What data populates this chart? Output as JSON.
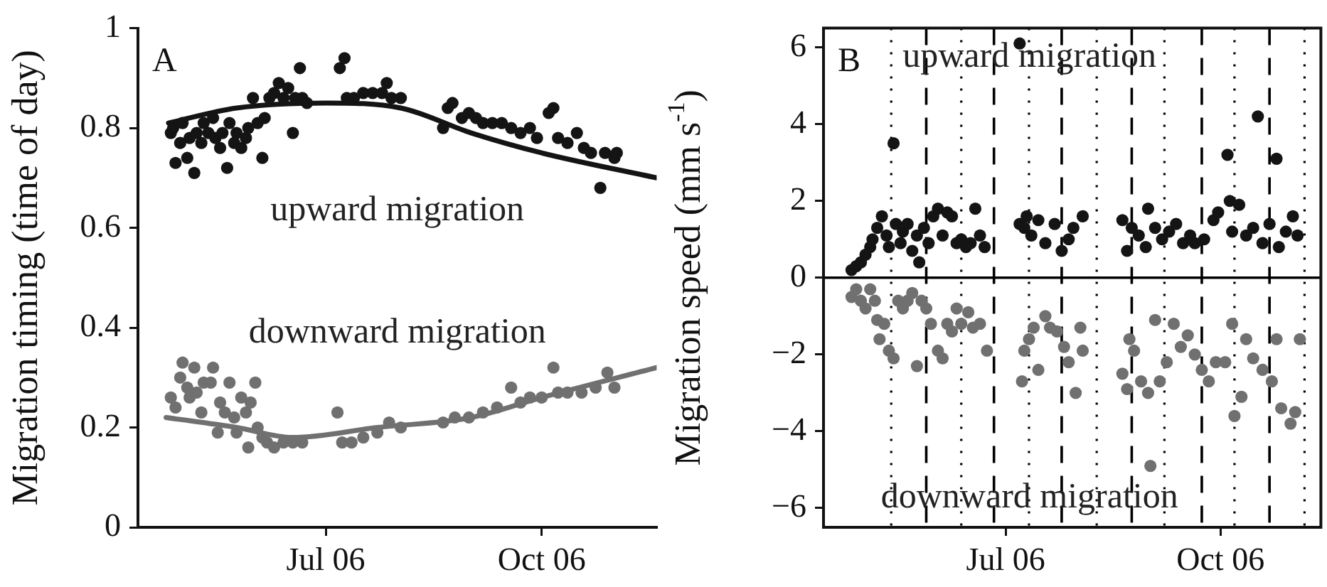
{
  "chart_data": [
    {
      "type": "scatter",
      "ylabel": "Migration timing (time of day)",
      "annotations": [
        "A"
      ],
      "marker": "circle",
      "xlim": [
        "2006-04-12",
        "2006-11-19"
      ],
      "xticks": [
        {
          "value": "2006-07-01",
          "label": "Jul 06"
        },
        {
          "value": "2006-10-01",
          "label": "Oct 06"
        }
      ],
      "ylim": [
        0,
        1
      ],
      "yticks": [
        0,
        0.2,
        0.4,
        0.6,
        0.8,
        1
      ],
      "series": [
        {
          "name": "upward migration",
          "color": "#141414",
          "x": [
            "2006-04-26",
            "2006-04-27",
            "2006-04-28",
            "2006-04-30",
            "2006-05-01",
            "2006-05-03",
            "2006-05-04",
            "2006-05-06",
            "2006-05-07",
            "2006-05-09",
            "2006-05-10",
            "2006-05-12",
            "2006-05-14",
            "2006-05-15",
            "2006-05-17",
            "2006-05-18",
            "2006-05-20",
            "2006-05-21",
            "2006-05-23",
            "2006-05-24",
            "2006-05-26",
            "2006-05-28",
            "2006-05-29",
            "2006-05-31",
            "2006-06-02",
            "2006-06-04",
            "2006-06-05",
            "2006-06-07",
            "2006-06-09",
            "2006-06-11",
            "2006-06-13",
            "2006-06-15",
            "2006-06-17",
            "2006-06-18",
            "2006-06-20",
            "2006-06-21",
            "2006-06-23",
            "2006-07-07",
            "2006-07-09",
            "2006-07-10",
            "2006-07-13",
            "2006-07-17",
            "2006-07-21",
            "2006-07-25",
            "2006-07-27",
            "2006-07-29",
            "2006-08-02",
            "2006-08-20",
            "2006-08-22",
            "2006-08-24",
            "2006-08-28",
            "2006-08-31",
            "2006-09-03",
            "2006-09-06",
            "2006-09-10",
            "2006-09-14",
            "2006-09-18",
            "2006-09-22",
            "2006-09-26",
            "2006-09-29",
            "2006-10-04",
            "2006-10-06",
            "2006-10-08",
            "2006-10-12",
            "2006-10-16",
            "2006-10-19",
            "2006-10-22",
            "2006-10-26",
            "2006-10-28",
            "2006-11-01",
            "2006-11-02"
          ],
          "values": [
            0.79,
            0.8,
            0.73,
            0.77,
            0.81,
            0.74,
            0.78,
            0.71,
            0.79,
            0.77,
            0.81,
            0.79,
            0.82,
            0.78,
            0.76,
            0.79,
            0.72,
            0.81,
            0.77,
            0.79,
            0.76,
            0.78,
            0.8,
            0.86,
            0.81,
            0.74,
            0.82,
            0.86,
            0.87,
            0.89,
            0.86,
            0.88,
            0.79,
            0.86,
            0.92,
            0.86,
            0.85,
            0.92,
            0.94,
            0.86,
            0.86,
            0.87,
            0.87,
            0.87,
            0.89,
            0.86,
            0.86,
            0.8,
            0.84,
            0.85,
            0.82,
            0.83,
            0.82,
            0.81,
            0.81,
            0.81,
            0.8,
            0.79,
            0.8,
            0.78,
            0.83,
            0.84,
            0.78,
            0.77,
            0.79,
            0.76,
            0.75,
            0.68,
            0.75,
            0.74,
            0.75
          ]
        },
        {
          "name": "downward migration",
          "color": "#707070",
          "x": [
            "2006-04-26",
            "2006-04-28",
            "2006-04-30",
            "2006-05-01",
            "2006-05-03",
            "2006-05-04",
            "2006-05-06",
            "2006-05-07",
            "2006-05-09",
            "2006-05-10",
            "2006-05-13",
            "2006-05-14",
            "2006-05-16",
            "2006-05-17",
            "2006-05-19",
            "2006-05-21",
            "2006-05-23",
            "2006-05-24",
            "2006-05-26",
            "2006-05-28",
            "2006-05-29",
            "2006-05-30",
            "2006-06-01",
            "2006-06-02",
            "2006-06-04",
            "2006-06-06",
            "2006-06-09",
            "2006-06-13",
            "2006-06-17",
            "2006-06-21",
            "2006-07-06",
            "2006-07-08",
            "2006-07-12",
            "2006-07-17",
            "2006-07-23",
            "2006-07-28",
            "2006-08-02",
            "2006-08-20",
            "2006-08-25",
            "2006-08-31",
            "2006-09-06",
            "2006-09-12",
            "2006-09-18",
            "2006-09-22",
            "2006-09-26",
            "2006-10-01",
            "2006-10-06",
            "2006-10-08",
            "2006-10-12",
            "2006-10-18",
            "2006-10-24",
            "2006-10-29",
            "2006-11-01"
          ],
          "values": [
            0.26,
            0.24,
            0.3,
            0.33,
            0.28,
            0.26,
            0.32,
            0.27,
            0.23,
            0.29,
            0.29,
            0.32,
            0.19,
            0.25,
            0.23,
            0.29,
            0.22,
            0.19,
            0.26,
            0.23,
            0.16,
            0.25,
            0.29,
            0.2,
            0.18,
            0.17,
            0.16,
            0.17,
            0.17,
            0.17,
            0.23,
            0.17,
            0.17,
            0.18,
            0.19,
            0.21,
            0.2,
            0.21,
            0.22,
            0.22,
            0.23,
            0.24,
            0.28,
            0.25,
            0.26,
            0.26,
            0.32,
            0.27,
            0.27,
            0.27,
            0.28,
            0.31,
            0.28
          ]
        },
        {
          "type": "line",
          "marker": "none",
          "color": "#141414",
          "x": [
            "2006-04-25",
            "2006-05-24",
            "2006-07-01",
            "2006-08-02",
            "2006-09-01",
            "2006-10-01",
            "2006-11-19"
          ],
          "values": [
            0.81,
            0.84,
            0.85,
            0.84,
            0.79,
            0.75,
            0.7
          ]
        },
        {
          "type": "line",
          "marker": "none",
          "color": "#707070",
          "x": [
            "2006-04-24",
            "2006-05-24",
            "2006-06-17",
            "2006-07-23",
            "2006-09-01",
            "2006-10-01",
            "2006-11-19"
          ],
          "values": [
            0.22,
            0.2,
            0.18,
            0.2,
            0.22,
            0.26,
            0.32
          ]
        }
      ]
    },
    {
      "type": "scatter",
      "ylabel": "Migration speed (mm s$^{-1}$)",
      "annotations": [
        "B"
      ],
      "marker": "circle",
      "xlim": [
        "2006-04-14",
        "2006-11-13"
      ],
      "xticks": [
        {
          "value": "2006-07-01",
          "label": "Jul 06"
        },
        {
          "value": "2006-10-01",
          "label": "Oct 06"
        }
      ],
      "ylim": [
        -6.5,
        6.5
      ],
      "yticks": [
        {
          "value": -6,
          "label": "−6"
        },
        {
          "value": -4,
          "label": "−4"
        },
        {
          "value": -2,
          "label": "−2"
        },
        0,
        2,
        4,
        6
      ],
      "ref_lines": [
        {
          "axis": "y",
          "value": 0,
          "line_style": "solid",
          "color": "#000000"
        },
        {
          "axis": "x",
          "value": "2006-05-28",
          "line_style": "dashed",
          "color": "#000000"
        },
        {
          "axis": "x",
          "value": "2006-06-26",
          "line_style": "dashed",
          "color": "#000000"
        },
        {
          "axis": "x",
          "value": "2006-07-25",
          "line_style": "dashed",
          "color": "#000000"
        },
        {
          "axis": "x",
          "value": "2006-08-24",
          "line_style": "dashed",
          "color": "#000000"
        },
        {
          "axis": "x",
          "value": "2006-09-23",
          "line_style": "dashed",
          "color": "#000000"
        },
        {
          "axis": "x",
          "value": "2006-10-22",
          "line_style": "dashed",
          "color": "#000000"
        },
        {
          "axis": "x",
          "value": "2006-05-13",
          "line_style": "dotted",
          "color": "#000000"
        },
        {
          "axis": "x",
          "value": "2006-06-12",
          "line_style": "dotted",
          "color": "#000000"
        },
        {
          "axis": "x",
          "value": "2006-07-11",
          "line_style": "dotted",
          "color": "#000000"
        },
        {
          "axis": "x",
          "value": "2006-08-09",
          "line_style": "dotted",
          "color": "#000000"
        },
        {
          "axis": "x",
          "value": "2006-09-07",
          "line_style": "dotted",
          "color": "#000000"
        },
        {
          "axis": "x",
          "value": "2006-10-07",
          "line_style": "dotted",
          "color": "#000000"
        },
        {
          "axis": "x",
          "value": "2006-11-06",
          "line_style": "dotted",
          "color": "#000000"
        }
      ],
      "series": [
        {
          "name": "upward migration",
          "color": "#141414",
          "x": [
            "2006-04-26",
            "2006-04-28",
            "2006-04-30",
            "2006-05-02",
            "2006-05-04",
            "2006-05-05",
            "2006-05-07",
            "2006-05-09",
            "2006-05-11",
            "2006-05-12",
            "2006-05-14",
            "2006-05-15",
            "2006-05-17",
            "2006-05-18",
            "2006-05-20",
            "2006-05-22",
            "2006-05-24",
            "2006-05-25",
            "2006-05-27",
            "2006-05-29",
            "2006-05-31",
            "2006-06-02",
            "2006-06-04",
            "2006-06-06",
            "2006-06-08",
            "2006-06-10",
            "2006-06-12",
            "2006-06-14",
            "2006-06-16",
            "2006-06-18",
            "2006-06-20",
            "2006-06-22",
            "2006-07-07",
            "2006-07-07",
            "2006-07-09",
            "2006-07-10",
            "2006-07-12",
            "2006-07-15",
            "2006-07-18",
            "2006-07-22",
            "2006-07-25",
            "2006-07-28",
            "2006-07-30",
            "2006-08-03",
            "2006-08-20",
            "2006-08-22",
            "2006-08-24",
            "2006-08-27",
            "2006-08-30",
            "2006-08-31",
            "2006-09-03",
            "2006-09-06",
            "2006-09-09",
            "2006-09-12",
            "2006-09-15",
            "2006-09-18",
            "2006-09-20",
            "2006-09-24",
            "2006-09-28",
            "2006-09-30",
            "2006-10-04",
            "2006-10-05",
            "2006-10-06",
            "2006-10-09",
            "2006-10-12",
            "2006-10-15",
            "2006-10-17",
            "2006-10-19",
            "2006-10-22",
            "2006-10-25",
            "2006-10-26",
            "2006-10-29",
            "2006-11-01",
            "2006-11-03"
          ],
          "values": [
            0.2,
            0.3,
            0.4,
            0.6,
            0.8,
            1.0,
            1.3,
            1.6,
            1.1,
            0.8,
            3.5,
            1.4,
            0.9,
            1.2,
            1.4,
            0.7,
            1.1,
            0.4,
            1.3,
            0.9,
            1.6,
            1.8,
            1.1,
            1.7,
            1.6,
            0.9,
            1.0,
            0.8,
            0.9,
            1.8,
            1.1,
            0.8,
            6.1,
            1.4,
            1.3,
            1.6,
            1.1,
            1.5,
            0.9,
            1.4,
            0.7,
            1.0,
            1.3,
            1.6,
            1.5,
            0.7,
            1.3,
            1.1,
            0.8,
            1.8,
            1.3,
            1.0,
            1.2,
            1.4,
            0.9,
            1.1,
            0.9,
            1.0,
            1.5,
            1.7,
            3.2,
            2.0,
            1.2,
            1.9,
            1.1,
            1.3,
            4.2,
            0.9,
            1.4,
            3.1,
            0.8,
            1.2,
            1.6,
            1.1
          ]
        },
        {
          "name": "downward migration",
          "color": "#707070",
          "x": [
            "2006-04-26",
            "2006-04-28",
            "2006-04-30",
            "2006-05-02",
            "2006-05-04",
            "2006-05-06",
            "2006-05-07",
            "2006-05-08",
            "2006-05-10",
            "2006-05-12",
            "2006-05-14",
            "2006-05-16",
            "2006-05-18",
            "2006-05-20",
            "2006-05-22",
            "2006-05-24",
            "2006-05-26",
            "2006-05-28",
            "2006-05-30",
            "2006-06-02",
            "2006-06-04",
            "2006-06-06",
            "2006-06-08",
            "2006-06-10",
            "2006-06-12",
            "2006-06-15",
            "2006-06-17",
            "2006-06-20",
            "2006-06-23",
            "2006-07-08",
            "2006-07-09",
            "2006-07-11",
            "2006-07-13",
            "2006-07-15",
            "2006-07-18",
            "2006-07-20",
            "2006-07-23",
            "2006-07-26",
            "2006-07-28",
            "2006-07-31",
            "2006-08-02",
            "2006-08-03",
            "2006-08-20",
            "2006-08-22",
            "2006-08-23",
            "2006-08-25",
            "2006-08-28",
            "2006-08-31",
            "2006-09-01",
            "2006-09-03",
            "2006-09-05",
            "2006-09-08",
            "2006-09-11",
            "2006-09-14",
            "2006-09-17",
            "2006-09-20",
            "2006-09-23",
            "2006-09-26",
            "2006-09-29",
            "2006-10-03",
            "2006-10-06",
            "2006-10-07",
            "2006-10-10",
            "2006-10-12",
            "2006-10-15",
            "2006-10-19",
            "2006-10-23",
            "2006-10-25",
            "2006-10-27",
            "2006-10-31",
            "2006-11-02",
            "2006-11-04"
          ],
          "values": [
            -0.5,
            -0.3,
            -0.6,
            -0.8,
            -0.3,
            -0.6,
            -1.1,
            -1.6,
            -1.2,
            -1.9,
            -2.1,
            -0.6,
            -0.8,
            -0.6,
            -0.4,
            -2.3,
            -0.6,
            -0.8,
            -1.2,
            -1.9,
            -2.1,
            -1.2,
            -1.4,
            -0.8,
            -1.2,
            -0.9,
            -1.3,
            -1.2,
            -1.9,
            -2.7,
            -1.9,
            -1.6,
            -1.3,
            -2.4,
            -1.0,
            -1.3,
            -1.4,
            -1.8,
            -2.2,
            -3.0,
            -1.3,
            -1.9,
            -2.5,
            -2.9,
            -1.6,
            -1.9,
            -2.7,
            -3.0,
            -4.9,
            -1.1,
            -2.7,
            -2.2,
            -1.2,
            -1.8,
            -1.5,
            -2.0,
            -2.4,
            -2.7,
            -2.2,
            -2.2,
            -1.2,
            -3.6,
            -3.1,
            -1.6,
            -2.1,
            -2.4,
            -2.7,
            -1.6,
            -3.4,
            -3.8,
            -3.5,
            -1.6
          ]
        }
      ]
    }
  ]
}
